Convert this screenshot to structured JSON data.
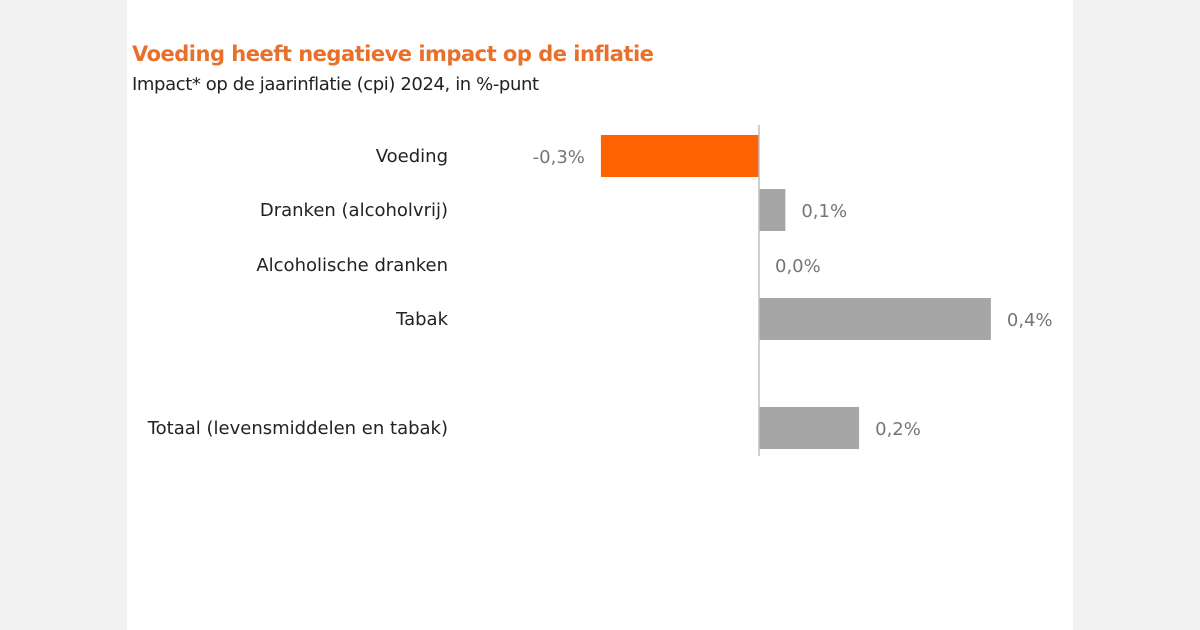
{
  "chart_data": {
    "type": "bar",
    "orientation": "horizontal",
    "title": "Voeding heeft negatieve impact op de inflatie",
    "subtitle": "Impact* op de jaarinflatie (cpi) 2024, in %-punt",
    "categories": [
      "Voeding",
      "Dranken (alcoholvrij)",
      "Alcoholische dranken",
      "Tabak",
      "Totaal (levensmiddelen en tabak)"
    ],
    "values": [
      -0.3,
      0.05,
      0.0,
      0.44,
      0.19
    ],
    "data_labels": [
      "-0,3%",
      "0,1%",
      "0,0%",
      "0,4%",
      "0,2%"
    ],
    "colors": [
      "#ff6200",
      "#a6a6a6",
      "#a6a6a6",
      "#a6a6a6",
      "#a6a6a6"
    ],
    "xlabel": "",
    "ylabel": "",
    "grid": false,
    "legend": "none"
  }
}
